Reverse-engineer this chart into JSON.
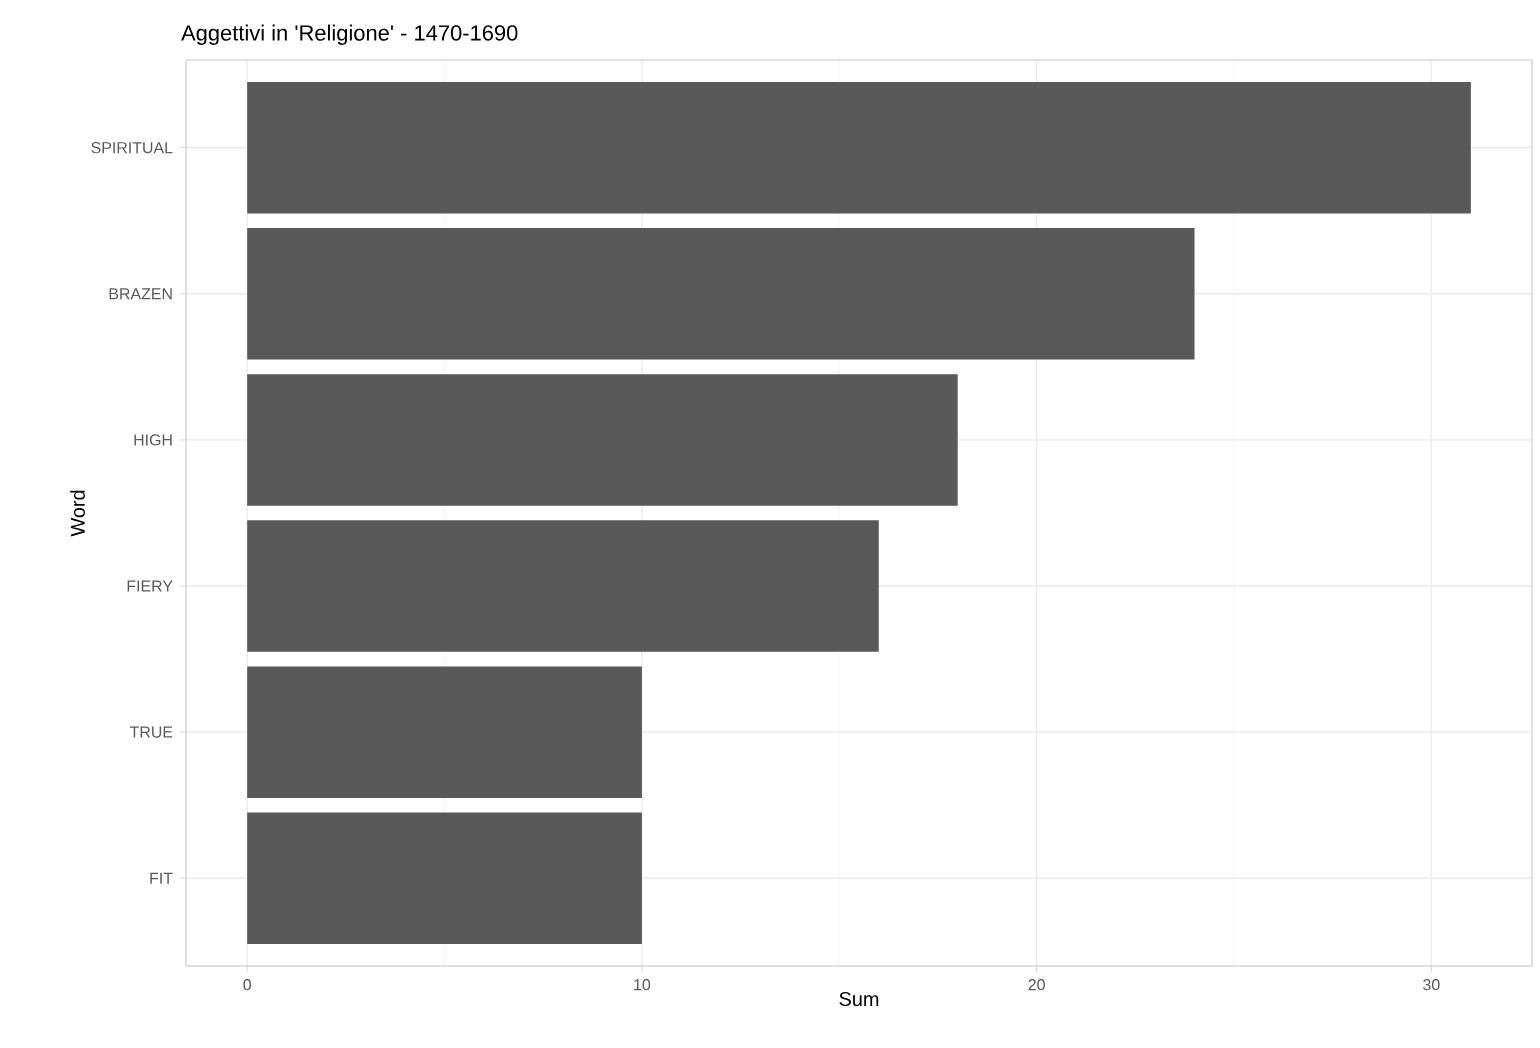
{
  "chart_data": {
    "type": "bar",
    "orientation": "horizontal",
    "title": "Aggettivi in 'Religione' - 1470-1690",
    "xlabel": "Sum",
    "ylabel": "Word",
    "categories": [
      "SPIRITUAL",
      "BRAZEN",
      "HIGH",
      "FIERY",
      "TRUE",
      "FIT"
    ],
    "values": [
      31,
      24,
      18,
      16,
      10,
      10
    ],
    "color": "#595959",
    "xlim": [
      -1.55,
      32.55
    ],
    "xticks": [
      0,
      10,
      20,
      30
    ],
    "grid": true
  }
}
